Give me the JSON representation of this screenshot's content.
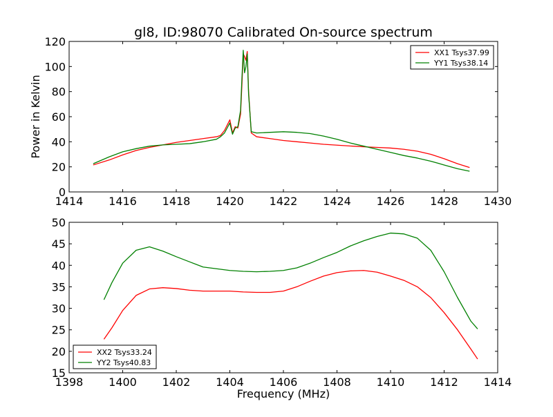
{
  "title": "gl8, ID:98070 Calibrated On-source spectrum",
  "chart_data": [
    {
      "type": "line",
      "title": "gl8, ID:98070 Calibrated On-source spectrum",
      "xlabel": "",
      "ylabel": "Power in Kelvin",
      "xlim": [
        1414,
        1430
      ],
      "ylim": [
        0,
        120
      ],
      "x_ticks": [
        "1414",
        "1416",
        "1418",
        "1420",
        "1422",
        "1424",
        "1426",
        "1428",
        "1430"
      ],
      "y_ticks": [
        "0",
        "20",
        "40",
        "60",
        "80",
        "100",
        "120"
      ],
      "legend_position": "top-right",
      "grid": false,
      "series": [
        {
          "name": "XX1 Tsys37.99",
          "color": "#ff0000",
          "x": [
            1414.9,
            1415.5,
            1416.0,
            1416.5,
            1417.0,
            1417.5,
            1418.0,
            1418.5,
            1419.0,
            1419.5,
            1419.65,
            1419.8,
            1420.0,
            1420.1,
            1420.2,
            1420.3,
            1420.4,
            1420.45,
            1420.5,
            1420.55,
            1420.6,
            1420.65,
            1420.7,
            1420.8,
            1421.0,
            1421.5,
            1422.0,
            1422.5,
            1423.0,
            1423.5,
            1424.0,
            1424.5,
            1425.0,
            1425.5,
            1426.0,
            1426.5,
            1427.0,
            1427.5,
            1428.0,
            1428.5,
            1428.95
          ],
          "y": [
            21.5,
            25.5,
            29.5,
            33.0,
            35.5,
            37.5,
            39.5,
            41.0,
            42.5,
            44.0,
            45.0,
            49.0,
            57.5,
            47.0,
            52.0,
            51.0,
            62.0,
            85.0,
            110.0,
            108.0,
            105.0,
            112.0,
            80.0,
            47.0,
            44.0,
            42.5,
            41.0,
            40.0,
            39.0,
            38.0,
            37.3,
            36.6,
            36.0,
            35.5,
            35.0,
            34.0,
            32.5,
            30.0,
            26.5,
            22.5,
            19.5
          ]
        },
        {
          "name": "YY1 Tsys38.14",
          "color": "#008000",
          "x": [
            1414.9,
            1415.5,
            1416.0,
            1416.5,
            1417.0,
            1417.5,
            1418.0,
            1418.5,
            1419.0,
            1419.5,
            1419.65,
            1419.8,
            1420.0,
            1420.1,
            1420.2,
            1420.3,
            1420.4,
            1420.45,
            1420.5,
            1420.55,
            1420.6,
            1420.65,
            1420.7,
            1420.8,
            1421.0,
            1421.5,
            1422.0,
            1422.5,
            1423.0,
            1423.5,
            1424.0,
            1424.5,
            1425.0,
            1425.5,
            1426.0,
            1426.5,
            1427.0,
            1427.5,
            1428.0,
            1428.5,
            1428.95
          ],
          "y": [
            22.5,
            28.0,
            32.0,
            34.5,
            36.5,
            37.5,
            38.0,
            38.5,
            40.0,
            42.0,
            44.0,
            47.0,
            55.0,
            46.0,
            51.0,
            52.0,
            65.0,
            90.0,
            113.0,
            95.0,
            100.0,
            110.0,
            78.0,
            48.0,
            47.0,
            47.5,
            48.0,
            47.5,
            46.5,
            44.5,
            42.0,
            39.0,
            36.5,
            34.0,
            31.5,
            29.0,
            27.0,
            24.5,
            21.5,
            18.5,
            16.5
          ]
        }
      ]
    },
    {
      "type": "line",
      "title": "",
      "xlabel": "Frequency (MHz)",
      "ylabel": "",
      "xlim": [
        1398,
        1414
      ],
      "ylim": [
        15,
        50
      ],
      "x_ticks": [
        "1398",
        "1400",
        "1402",
        "1404",
        "1406",
        "1408",
        "1410",
        "1412",
        "1414"
      ],
      "y_ticks": [
        "15",
        "20",
        "25",
        "30",
        "35",
        "40",
        "45",
        "50"
      ],
      "legend_position": "bottom-left",
      "grid": false,
      "series": [
        {
          "name": "XX2 Tsys33.24",
          "color": "#ff0000",
          "x": [
            1399.3,
            1399.6,
            1400.0,
            1400.5,
            1401.0,
            1401.5,
            1402.0,
            1402.5,
            1403.0,
            1403.5,
            1404.0,
            1404.5,
            1405.0,
            1405.5,
            1406.0,
            1406.5,
            1407.0,
            1407.5,
            1408.0,
            1408.5,
            1409.0,
            1409.5,
            1410.0,
            1410.5,
            1411.0,
            1411.5,
            1412.0,
            1412.5,
            1413.0,
            1413.25
          ],
          "y": [
            22.8,
            25.5,
            29.5,
            33.0,
            34.5,
            34.8,
            34.6,
            34.2,
            34.0,
            34.0,
            34.0,
            33.8,
            33.7,
            33.7,
            34.0,
            35.0,
            36.3,
            37.5,
            38.3,
            38.7,
            38.8,
            38.4,
            37.5,
            36.5,
            35.0,
            32.5,
            29.0,
            25.0,
            20.5,
            18.2
          ]
        },
        {
          "name": "YY2 Tsys40.83",
          "color": "#008000",
          "x": [
            1399.3,
            1399.6,
            1400.0,
            1400.5,
            1401.0,
            1401.5,
            1402.0,
            1402.5,
            1403.0,
            1403.5,
            1404.0,
            1404.5,
            1405.0,
            1405.5,
            1406.0,
            1406.5,
            1407.0,
            1407.5,
            1408.0,
            1408.5,
            1409.0,
            1409.5,
            1410.0,
            1410.5,
            1411.0,
            1411.5,
            1412.0,
            1412.5,
            1413.0,
            1413.25
          ],
          "y": [
            32.0,
            36.0,
            40.5,
            43.5,
            44.3,
            43.3,
            42.0,
            40.8,
            39.6,
            39.2,
            38.8,
            38.6,
            38.5,
            38.6,
            38.8,
            39.4,
            40.5,
            41.8,
            43.0,
            44.5,
            45.7,
            46.7,
            47.5,
            47.3,
            46.3,
            43.5,
            38.5,
            32.5,
            27.0,
            25.2
          ]
        }
      ]
    }
  ]
}
